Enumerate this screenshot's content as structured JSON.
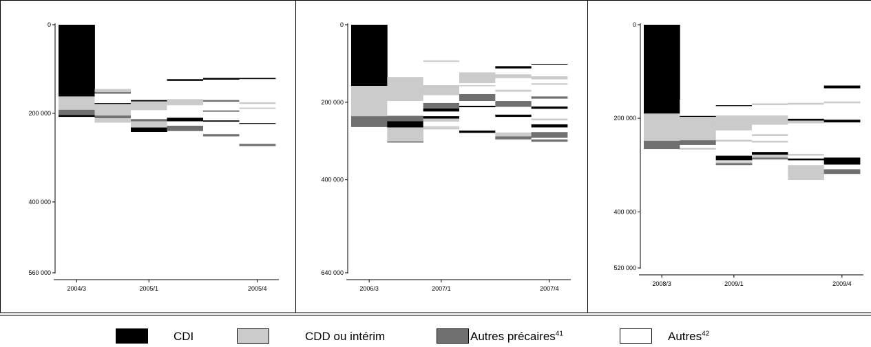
{
  "colors": {
    "CDI": "#000000",
    "CDD": "#cbcbcb",
    "AP": "#707070",
    "AU": "#ffffff"
  },
  "legend": [
    {
      "key": "CDI",
      "label": "CDI",
      "note": ""
    },
    {
      "key": "CDD",
      "label": "CDD ou intérim",
      "note": ""
    },
    {
      "key": "AP",
      "label": "Autres précaires",
      "note": "41"
    },
    {
      "key": "AU",
      "label": "Autres",
      "note": "42"
    }
  ],
  "chart_data": [
    {
      "type": "area",
      "description": "Cohort transition diagram (stacked bands by quarter)",
      "ylim": [
        0,
        560000
      ],
      "y_ticks": [
        {
          "value": 0,
          "label": "0"
        },
        {
          "value": 200000,
          "label": "200 000"
        },
        {
          "value": 400000,
          "label": "400 000"
        },
        {
          "value": 560000,
          "label": "560 000"
        }
      ],
      "x_labels": [
        {
          "index": 0,
          "label": "2004/3"
        },
        {
          "index": 2,
          "label": "2005/1"
        },
        {
          "index": 5,
          "label": "2005/4"
        }
      ],
      "columns": [
        {
          "top": 0,
          "bands": [
            [
              "CDI",
              162000
            ],
            [
              "CDD",
              30000
            ],
            [
              "AP",
              12000
            ],
            [
              "CDI",
              4000
            ]
          ]
        },
        {
          "top": 145000,
          "bands": [
            [
              "CDD",
              8000
            ],
            [
              "CDI",
              2000
            ],
            [
              "AU",
              22000
            ],
            [
              "CDI",
              2000
            ],
            [
              "CDD",
              26000
            ],
            [
              "AP",
              6000
            ],
            [
              "CDD",
              10000
            ]
          ]
        },
        {
          "top": 118000,
          "bands": [
            [
              "AU",
              52000
            ],
            [
              "CDI",
              3000
            ],
            [
              "CDD",
              20000
            ],
            [
              "AU",
              20000
            ],
            [
              "AP",
              5000
            ],
            [
              "CDD",
              14000
            ],
            [
              "CDI",
              10000
            ]
          ]
        },
        {
          "top": 88000,
          "bands": [
            [
              "AU",
              35000
            ],
            [
              "CDI",
              4000
            ],
            [
              "AU",
              41000
            ],
            [
              "CDD",
              14000
            ],
            [
              "AU",
              28000
            ],
            [
              "CDI",
              8000
            ],
            [
              "AU",
              10000
            ],
            [
              "AP",
              12000
            ]
          ]
        },
        {
          "top": 66000,
          "bands": [
            [
              "AU",
              54000
            ],
            [
              "CDI",
              4000
            ],
            [
              "AU",
              46000
            ],
            [
              "AP",
              4000
            ],
            [
              "AU",
              20000
            ],
            [
              "CDI",
              2000
            ],
            [
              "AU",
              20000
            ],
            [
              "CDI",
              3000
            ],
            [
              "AU",
              28000
            ],
            [
              "AP",
              5000
            ]
          ]
        },
        {
          "top": 55000,
          "bands": [
            [
              "AU",
              65000
            ],
            [
              "CDI",
              3000
            ],
            [
              "AU",
              52000
            ],
            [
              "CDD",
              4000
            ],
            [
              "AU",
              8000
            ],
            [
              "CDD",
              3000
            ],
            [
              "AU",
              32000
            ],
            [
              "CDI",
              2000
            ],
            [
              "AU",
              45000
            ],
            [
              "AP",
              5000
            ]
          ]
        }
      ]
    },
    {
      "type": "area",
      "description": "Cohort transition diagram (stacked bands by quarter)",
      "ylim": [
        0,
        640000
      ],
      "y_ticks": [
        {
          "value": 0,
          "label": "0"
        },
        {
          "value": 200000,
          "label": "200 000"
        },
        {
          "value": 400000,
          "label": "400 000"
        },
        {
          "value": 640000,
          "label": "640 000"
        }
      ],
      "x_labels": [
        {
          "index": 0,
          "label": "2006/3"
        },
        {
          "index": 2,
          "label": "2007/1"
        },
        {
          "index": 5,
          "label": "2007/4"
        }
      ],
      "columns": [
        {
          "top": 0,
          "bands": [
            [
              "CDI",
              158000
            ],
            [
              "CDD",
              78000
            ],
            [
              "AP",
              28000
            ]
          ]
        },
        {
          "top": 135000,
          "bands": [
            [
              "CDD",
              62000
            ],
            [
              "AU",
              38000
            ],
            [
              "AP",
              14000
            ],
            [
              "CDI",
              16000
            ],
            [
              "CDD",
              36000
            ],
            [
              "AP",
              3000
            ]
          ]
        },
        {
          "top": 92000,
          "bands": [
            [
              "CDD",
              4000
            ],
            [
              "AU",
              60000
            ],
            [
              "CDD",
              26000
            ],
            [
              "AU",
              20000
            ],
            [
              "AP",
              14000
            ],
            [
              "CDI",
              8000
            ],
            [
              "AU",
              12000
            ],
            [
              "CDI",
              6000
            ],
            [
              "CDD",
              8000
            ],
            [
              "AU",
              12000
            ],
            [
              "CDD",
              8000
            ]
          ]
        },
        {
          "top": 78000,
          "bands": [
            [
              "AU",
              45000
            ],
            [
              "CDD",
              28000
            ],
            [
              "AU",
              5000
            ],
            [
              "CDD",
              3000
            ],
            [
              "AU",
              20000
            ],
            [
              "AP",
              18000
            ],
            [
              "AU",
              12000
            ],
            [
              "CDI",
              4000
            ],
            [
              "AU",
              60000
            ],
            [
              "CDI",
              6000
            ]
          ]
        },
        {
          "top": 65000,
          "bands": [
            [
              "AU",
              42000
            ],
            [
              "CDI",
              6000
            ],
            [
              "AU",
              15000
            ],
            [
              "CDD",
              10000
            ],
            [
              "AU",
              30000
            ],
            [
              "CDD",
              5000
            ],
            [
              "AU",
              24000
            ],
            [
              "AP",
              15000
            ],
            [
              "AU",
              20000
            ],
            [
              "CDI",
              6000
            ],
            [
              "AU",
              40000
            ],
            [
              "CDD",
              10000
            ],
            [
              "AP",
              8000
            ]
          ]
        },
        {
          "top": 53000,
          "bands": [
            [
              "AU",
              48000
            ],
            [
              "CDI",
              2000
            ],
            [
              "AU",
              30000
            ],
            [
              "CDD",
              8000
            ],
            [
              "AU",
              10000
            ],
            [
              "CDD",
              4000
            ],
            [
              "AU",
              30000
            ],
            [
              "AP",
              6000
            ],
            [
              "AU",
              20000
            ],
            [
              "CDI",
              6000
            ],
            [
              "AU",
              25000
            ],
            [
              "CDD",
              5000
            ],
            [
              "AU",
              10000
            ],
            [
              "CDI",
              8000
            ],
            [
              "AU",
              12000
            ],
            [
              "AP",
              15000
            ],
            [
              "AU",
              4000
            ],
            [
              "AP",
              6000
            ]
          ]
        }
      ]
    },
    {
      "type": "area",
      "description": "Cohort transition diagram (stacked bands by quarter)",
      "ylim": [
        0,
        520000
      ],
      "y_ticks": [
        {
          "value": 0,
          "label": "0"
        },
        {
          "value": 200000,
          "label": "200 000"
        },
        {
          "value": 400000,
          "label": "400 000"
        },
        {
          "value": 520000,
          "label": "520 000"
        }
      ],
      "x_labels": [
        {
          "index": 0,
          "label": "2008/3"
        },
        {
          "index": 2,
          "label": "2009/1"
        },
        {
          "index": 5,
          "label": "2009/4"
        }
      ],
      "columns": [
        {
          "top": 0,
          "bands": [
            [
              "CDI",
              190000
            ],
            [
              "CDD",
              58000
            ],
            [
              "AP",
              18000
            ]
          ]
        },
        {
          "top": 160000,
          "bands": [
            [
              "AU",
              35000
            ],
            [
              "CDI",
              2000
            ],
            [
              "CDD",
              50000
            ],
            [
              "AP",
              10000
            ],
            [
              "AU",
              6000
            ],
            [
              "CDD",
              4000
            ]
          ]
        },
        {
          "top": 130000,
          "bands": [
            [
              "AU",
              42000
            ],
            [
              "CDI",
              2000
            ],
            [
              "AU",
              20000
            ],
            [
              "CDD",
              32000
            ],
            [
              "AU",
              20000
            ],
            [
              "CDD",
              4000
            ],
            [
              "AU",
              30000
            ],
            [
              "CDI",
              10000
            ],
            [
              "AU",
              2000
            ],
            [
              "CDD",
              4000
            ],
            [
              "AP",
              4000
            ]
          ]
        },
        {
          "top": 118000,
          "bands": [
            [
              "AU",
              50000
            ],
            [
              "CDD",
              4000
            ],
            [
              "AU",
              22000
            ],
            [
              "CDD",
              20000
            ],
            [
              "AU",
              20000
            ],
            [
              "CDD",
              4000
            ],
            [
              "AU",
              10000
            ],
            [
              "CDD",
              4000
            ],
            [
              "AU",
              20000
            ],
            [
              "CDI",
              6000
            ],
            [
              "CDD",
              6000
            ],
            [
              "AP",
              4000
            ]
          ]
        },
        {
          "top": 105000,
          "bands": [
            [
              "AU",
              62000
            ],
            [
              "CDD",
              4000
            ],
            [
              "AU",
              30000
            ],
            [
              "CDI",
              4000
            ],
            [
              "CDD",
              6000
            ],
            [
              "AU",
              65000
            ],
            [
              "CDD",
              4000
            ],
            [
              "AU",
              6000
            ],
            [
              "CDI",
              4000
            ],
            [
              "AU",
              10000
            ],
            [
              "CDD",
              32000
            ]
          ]
        },
        {
          "top": 90000,
          "bands": [
            [
              "AU",
              40000
            ],
            [
              "CDI",
              6000
            ],
            [
              "AU",
              28000
            ],
            [
              "CDD",
              4000
            ],
            [
              "AU",
              35000
            ],
            [
              "CDI",
              6000
            ],
            [
              "AU",
              75000
            ],
            [
              "CDI",
              15000
            ],
            [
              "AU",
              10000
            ],
            [
              "AP",
              10000
            ]
          ]
        }
      ]
    }
  ]
}
